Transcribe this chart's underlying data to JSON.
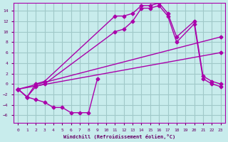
{
  "xlabel": "Windchill (Refroidissement éolien,°C)",
  "bg_color": "#c8ecec",
  "grid_color": "#a0c8c8",
  "line_color": "#aa00aa",
  "x_ticks": [
    0,
    1,
    2,
    3,
    4,
    5,
    6,
    7,
    8,
    9,
    10,
    11,
    12,
    13,
    14,
    15,
    16,
    17,
    18,
    19,
    20,
    21,
    22,
    23
  ],
  "y_ticks": [
    -6,
    -4,
    -2,
    0,
    2,
    4,
    6,
    8,
    10,
    12,
    14
  ],
  "xlim": [
    -0.5,
    23.5
  ],
  "ylim": [
    -7.5,
    15.5
  ],
  "line1_x": [
    0,
    1,
    2,
    3,
    4,
    5,
    6,
    7,
    8,
    9
  ],
  "line1_y": [
    -1,
    -2.5,
    -3.0,
    -3.5,
    -4.5,
    -4.5,
    -5.5,
    -5.5,
    -5.5,
    1.0
  ],
  "line2_x": [
    0,
    1,
    2,
    3,
    11,
    12,
    13,
    14,
    15,
    16,
    17,
    18,
    20,
    21,
    22,
    23
  ],
  "line2_y": [
    -1,
    -2.5,
    0,
    0.5,
    13.0,
    13.0,
    13.5,
    15.0,
    15.0,
    15.5,
    13.5,
    9.0,
    12.0,
    1.5,
    0.5,
    0.0
  ],
  "line3_x": [
    0,
    1,
    2,
    3,
    11,
    12,
    13,
    14,
    15,
    16,
    17,
    18,
    20,
    21,
    22,
    23
  ],
  "line3_y": [
    -1,
    -2.5,
    -0.5,
    0.0,
    10.0,
    10.5,
    12.0,
    14.5,
    14.5,
    15.0,
    13.0,
    8.0,
    11.5,
    1.0,
    0.0,
    -0.5
  ],
  "line4_x": [
    0,
    23
  ],
  "line4_y": [
    -1,
    9.0
  ],
  "line5_x": [
    0,
    23
  ],
  "line5_y": [
    -1,
    6.0
  ]
}
